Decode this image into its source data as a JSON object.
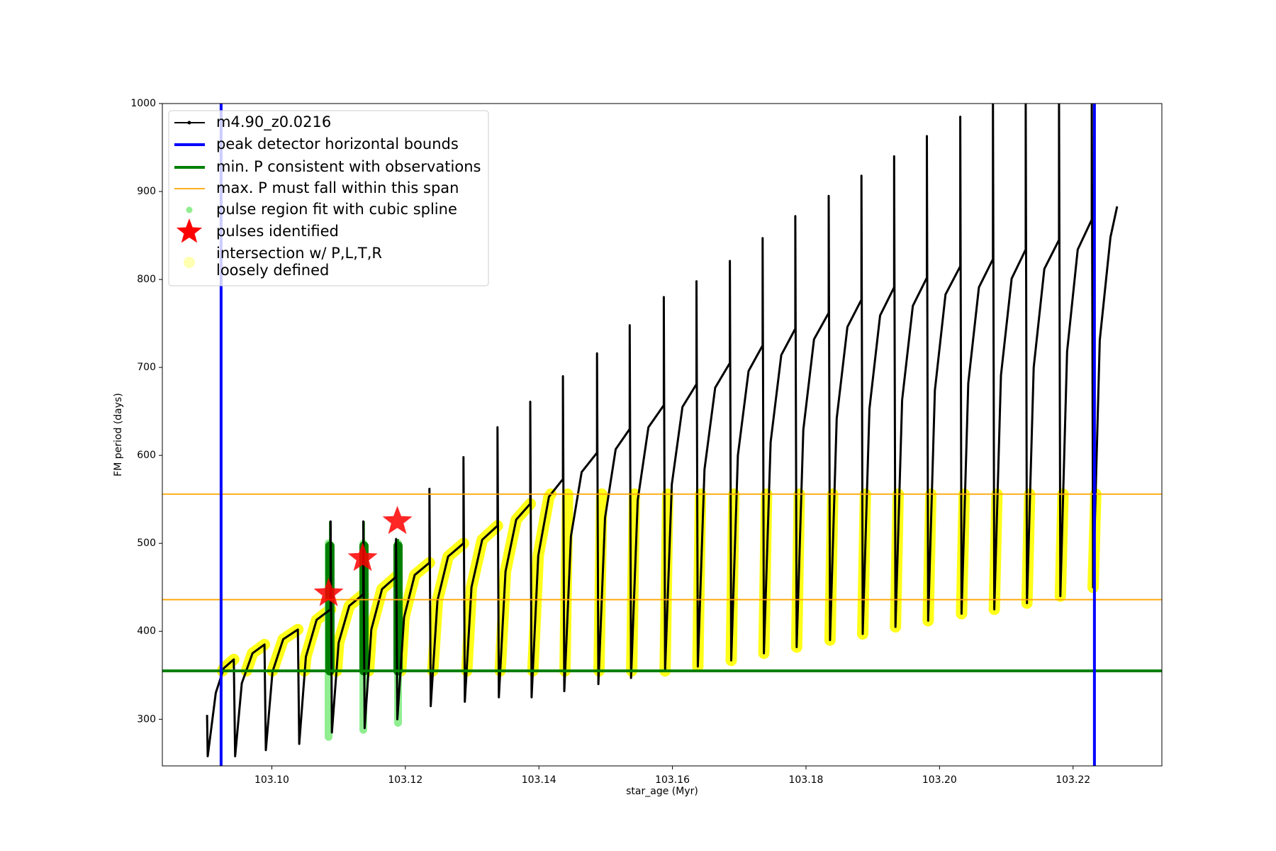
{
  "chart_data": {
    "type": "line",
    "xlabel": "star_age (Myr)",
    "ylabel": "FM period (days)",
    "xlim": [
      103.0836,
      103.2333
    ],
    "ylim": [
      247,
      1000
    ],
    "xticks": [
      {
        "value": 103.1,
        "label": "103.10"
      },
      {
        "value": 103.12,
        "label": "103.12"
      },
      {
        "value": 103.14,
        "label": "103.14"
      },
      {
        "value": 103.16,
        "label": "103.16"
      },
      {
        "value": 103.18,
        "label": "103.18"
      },
      {
        "value": 103.2,
        "label": "103.20"
      },
      {
        "value": 103.22,
        "label": "103.22"
      }
    ],
    "yticks": [
      300,
      400,
      500,
      600,
      700,
      800,
      900,
      1000
    ],
    "legend": "upper left",
    "track": {
      "name": "m4.90_z0.0216",
      "color": "#000000",
      "x": [
        103.0903,
        103.0904,
        103.0916,
        103.0928,
        103.0943,
        103.0943,
        103.0945,
        103.0955,
        103.0971,
        103.0989,
        103.0989,
        103.0991,
        103.1001,
        103.1017,
        103.1039,
        103.1039,
        103.1041,
        103.1051,
        103.1067,
        103.1088,
        103.1088,
        103.109,
        103.11,
        103.1116,
        103.1137,
        103.1137,
        103.1139,
        103.1149,
        103.1165,
        103.1186,
        103.1186,
        103.1188,
        103.1198,
        103.1214,
        103.1236,
        103.1236,
        103.1238,
        103.1248,
        103.1264,
        103.1287,
        103.1287,
        103.1289,
        103.1299,
        103.1315,
        103.1338,
        103.1338,
        103.134,
        103.135,
        103.1366,
        103.1387,
        103.1387,
        103.1389,
        103.1399,
        103.1415,
        103.1436,
        103.1436,
        103.1438,
        103.1448,
        103.1464,
        103.1487,
        103.1487,
        103.1489,
        103.1499,
        103.1515,
        103.1536,
        103.1536,
        103.1538,
        103.1548,
        103.1564,
        103.1587,
        103.1587,
        103.1589,
        103.1599,
        103.1615,
        103.1636,
        103.1636,
        103.1638,
        103.1648,
        103.1664,
        103.1686,
        103.1686,
        103.1688,
        103.1698,
        103.1714,
        103.1735,
        103.1735,
        103.1737,
        103.1747,
        103.1763,
        103.1784,
        103.1784,
        103.1786,
        103.1796,
        103.1812,
        103.1834,
        103.1834,
        103.1836,
        103.1846,
        103.1862,
        103.1883,
        103.1883,
        103.1885,
        103.1895,
        103.1911,
        103.1932,
        103.1932,
        103.1934,
        103.1944,
        103.196,
        103.1981,
        103.1981,
        103.1983,
        103.1993,
        103.2009,
        103.2031,
        103.2031,
        103.2033,
        103.2043,
        103.2059,
        103.208,
        103.208,
        103.2082,
        103.2092,
        103.2108,
        103.2129,
        103.2129,
        103.2131,
        103.2141,
        103.2157,
        103.2179,
        103.2179,
        103.2181,
        103.2191,
        103.2207,
        103.2228,
        103.2228,
        103.223,
        103.224,
        103.2256,
        103.2266
      ],
      "y": [
        305,
        258,
        330,
        358,
        368,
        368,
        258,
        341,
        375,
        385,
        385,
        265,
        354,
        391,
        402,
        402,
        272,
        371,
        413,
        425,
        525,
        285,
        387,
        429,
        442,
        525,
        290,
        402,
        448,
        462,
        505,
        300,
        416,
        464,
        478,
        562,
        315,
        435,
        485,
        500,
        598,
        320,
        450,
        504,
        520,
        632,
        325,
        468,
        527,
        545,
        661,
        325,
        486,
        553,
        573,
        690,
        332,
        508,
        581,
        603,
        716,
        340,
        529,
        607,
        630,
        748,
        347,
        549,
        632,
        657,
        780,
        355,
        567,
        655,
        681,
        798,
        360,
        584,
        677,
        705,
        821,
        367,
        600,
        696,
        725,
        847,
        375,
        615,
        714,
        744,
        872,
        382,
        629,
        732,
        762,
        895,
        390,
        642,
        746,
        777,
        918,
        397,
        653,
        759,
        791,
        940,
        405,
        663,
        770,
        802,
        963,
        412,
        674,
        783,
        815,
        985,
        420,
        682,
        791,
        823,
        1010,
        425,
        691,
        801,
        834,
        1010,
        432,
        700,
        812,
        845,
        1010,
        440,
        718,
        834,
        868,
        1010,
        450,
        731,
        848,
        883
      ]
    },
    "bounds": {
      "name": "peak detector horizontal bounds",
      "color": "#0000ff",
      "x": [
        103.0924,
        103.2232
      ]
    },
    "min_p": {
      "name": "min. P consistent with observations",
      "color": "#008000",
      "y": [
        355
      ]
    },
    "max_p": {
      "name": "max. P must fall within this span",
      "color": "#ffa500",
      "y": [
        436,
        556
      ]
    },
    "pulse_fit": {
      "name": "pulse region fit with cubic spline",
      "color": "#90ee90",
      "x": [
        103.1085,
        103.1137,
        103.1189
      ],
      "low": [
        280,
        288,
        296
      ],
      "high": [
        500,
        500,
        500
      ]
    },
    "pulse_core": {
      "color": "#008000",
      "x": [
        103.1087,
        103.1138,
        103.1189
      ],
      "low": [
        355,
        355,
        355
      ],
      "high": [
        497,
        497,
        497
      ],
      "spike": [
        525,
        525,
        505
      ]
    },
    "pulses": {
      "name": "pulses identified",
      "color": "#ff0000",
      "x": [
        103.1085,
        103.1136,
        103.1188
      ],
      "y": [
        443,
        483,
        525
      ]
    },
    "intersection": {
      "name_lines": [
        "intersection w/ P,L,T,R",
        "loosely defined"
      ],
      "color": "#ffff00",
      "x": [
        103.0926,
        103.0928,
        103.0943,
        null,
        103.0962,
        103.0971,
        103.0989,
        null,
        103.1001,
        103.1017,
        103.1039,
        null,
        103.1049,
        103.1051,
        103.1067,
        103.1088,
        null,
        103.1097,
        103.11,
        103.1116,
        103.1137,
        null,
        103.1145,
        103.1149,
        103.1165,
        103.1186,
        null,
        103.1193,
        103.1198,
        103.1214,
        103.1236,
        null,
        103.1241,
        103.1248,
        103.1264,
        103.1287,
        null,
        103.1292,
        103.1299,
        103.1315,
        103.1338,
        null,
        103.1342,
        103.135,
        103.1366,
        103.1387,
        null,
        103.1391,
        103.1399,
        103.1415,
        103.1418,
        null,
        103.1439,
        103.1443,
        null,
        103.149,
        103.1494,
        null,
        103.1539,
        103.1543,
        null,
        103.1589,
        103.1593,
        null,
        103.1638,
        103.1642,
        null,
        103.1688,
        103.1692,
        null,
        103.1737,
        103.1741,
        null,
        103.1786,
        103.179,
        null,
        103.1836,
        103.184,
        null,
        103.1885,
        103.1889,
        null,
        103.1934,
        103.1938,
        null,
        103.1983,
        103.1987,
        null,
        103.2033,
        103.2037,
        null,
        103.2082,
        103.2086,
        null,
        103.2131,
        103.2135,
        null,
        103.2181,
        103.2185,
        null,
        103.223,
        103.2234
      ],
      "y": [
        355,
        358,
        368,
        null,
        355,
        375,
        385,
        null,
        355,
        391,
        402,
        null,
        355,
        371,
        413,
        425,
        null,
        355,
        387,
        429,
        442,
        null,
        355,
        402,
        448,
        462,
        null,
        355,
        416,
        464,
        478,
        null,
        355,
        435,
        485,
        500,
        null,
        355,
        450,
        504,
        520,
        null,
        355,
        468,
        527,
        545,
        null,
        355,
        486,
        553,
        556,
        null,
        355,
        556,
        null,
        355,
        556,
        null,
        355,
        556,
        null,
        355,
        556,
        null,
        360,
        556,
        null,
        367,
        556,
        null,
        375,
        556,
        null,
        382,
        556,
        null,
        390,
        556,
        null,
        397,
        556,
        null,
        405,
        556,
        null,
        412,
        556,
        null,
        420,
        556,
        null,
        425,
        556,
        null,
        432,
        556,
        null,
        440,
        556,
        null,
        450,
        556
      ]
    }
  }
}
